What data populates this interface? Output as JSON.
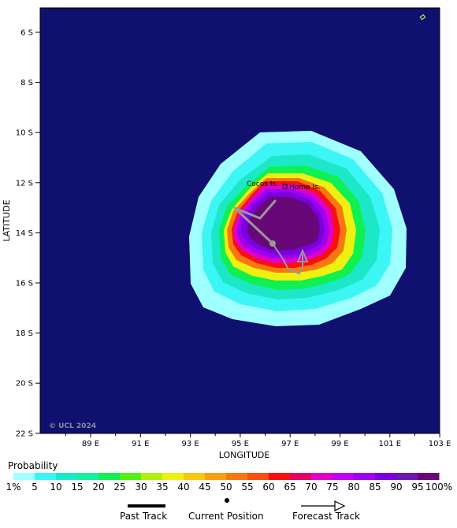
{
  "map": {
    "ylabel": "LATITUDE",
    "xlabel": "LONGITUDE",
    "lat_ticks": [
      "6 S",
      "8 S",
      "10 S",
      "12 S",
      "14 S",
      "16 S",
      "18 S",
      "20 S",
      "22 S"
    ],
    "lon_ticks": [
      "89 E",
      "91 E",
      "93 E",
      "95 E",
      "97 E",
      "99 E",
      "101 E",
      "103 E"
    ],
    "copyright": "© UCL 2024",
    "places": [
      {
        "name": "Cocos Is.",
        "lon": 95.1,
        "lat": -12.0
      },
      {
        "name": "Home Is.",
        "lon": 96.5,
        "lat": -12.2
      }
    ],
    "current_position": {
      "lon": 96.3,
      "lat": -14.5
    },
    "background_color": "#101070"
  },
  "legend": {
    "title": "Probability",
    "levels": [
      "1%",
      "5",
      "10",
      "15",
      "20",
      "25",
      "30",
      "35",
      "40",
      "45",
      "50",
      "55",
      "60",
      "65",
      "70",
      "75",
      "80",
      "85",
      "90",
      "95",
      "100%"
    ],
    "colors": [
      "#a0ffff",
      "#3cf5f5",
      "#1ce8c8",
      "#14f0a0",
      "#10f050",
      "#50f010",
      "#b0f010",
      "#f0f010",
      "#f8c810",
      "#f8a010",
      "#f87810",
      "#f85010",
      "#f81010",
      "#e00060",
      "#e000c8",
      "#c000f0",
      "#a000f0",
      "#7a00e0",
      "#6a1ab0",
      "#680878"
    ]
  },
  "track_key": {
    "past_label": "Past Track",
    "current_label": "Current Position",
    "forecast_label": "Forecast Track"
  }
}
